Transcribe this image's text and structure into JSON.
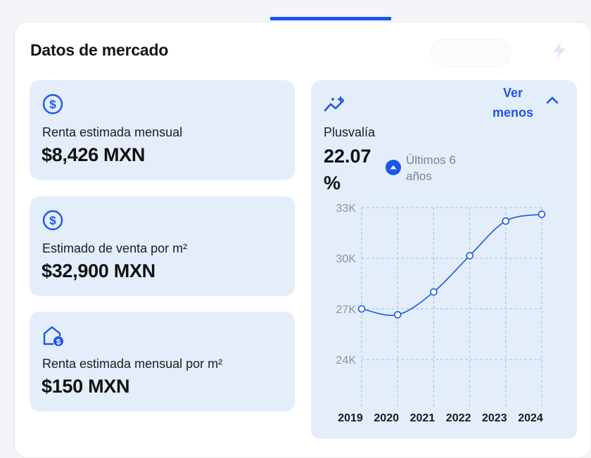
{
  "header": {
    "title": "Datos de mercado"
  },
  "metrics": [
    {
      "icon": "dollar-circle-icon",
      "label": "Renta estimada mensual",
      "value": "$8,426 MXN"
    },
    {
      "icon": "dollar-circle-icon",
      "label": "Estimado de venta por m²",
      "value": "$32,900 MXN"
    },
    {
      "icon": "house-dollar-icon",
      "label": "Renta estimada mensual por m²",
      "value": "$150 MXN"
    }
  ],
  "plusvalia": {
    "icon": "trend-sparkle-icon",
    "toggle_label": "Ver menos",
    "label": "Plusvalía",
    "value": "22.07 %",
    "period": "Últimos 6 años"
  },
  "colors": {
    "accent": "#1a57e8",
    "panel": "#e4eefb"
  },
  "chart_data": {
    "type": "line",
    "x": [
      "2019",
      "2020",
      "2021",
      "2022",
      "2023",
      "2024"
    ],
    "series": [
      {
        "values": [
          27000,
          26650,
          28000,
          30150,
          32200,
          32600
        ]
      }
    ],
    "y_ticks": [
      "24K",
      "27K",
      "30K",
      "33K"
    ],
    "y_tick_values": [
      24000,
      27000,
      30000,
      33000
    ],
    "ylim": [
      24000,
      33000
    ],
    "grid": true
  }
}
